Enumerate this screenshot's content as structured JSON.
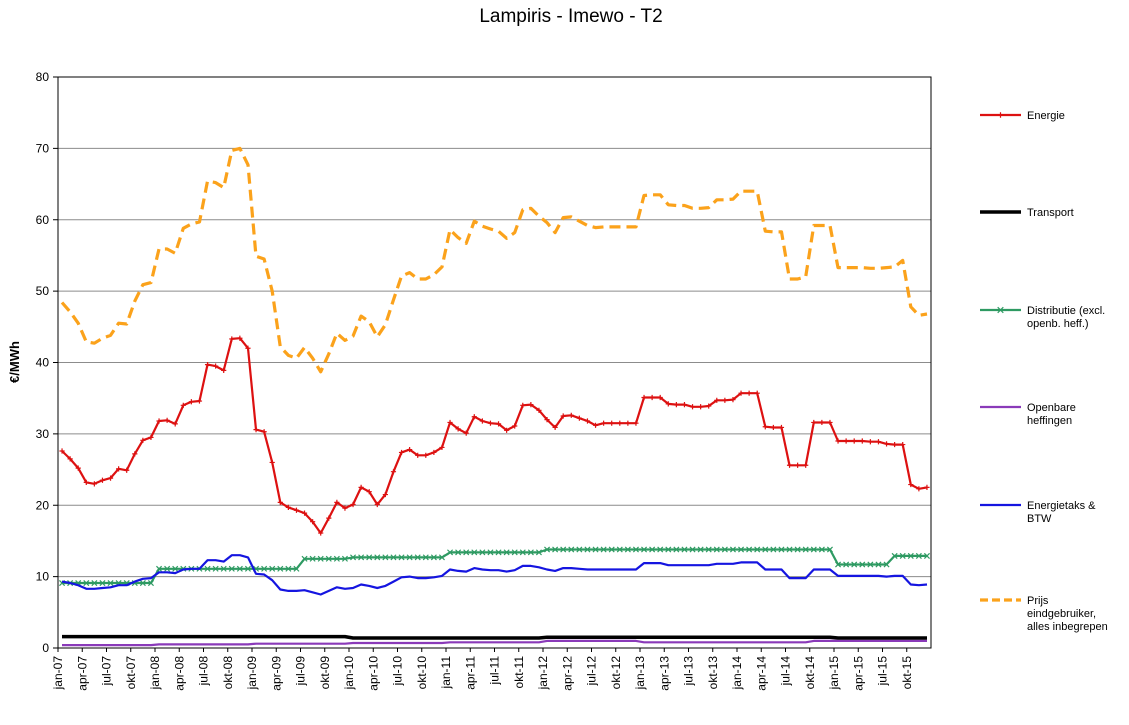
{
  "chart_data": {
    "type": "line",
    "title": "Lampiris - Imewo - T2",
    "xlabel": "",
    "ylabel": "€/MWh",
    "ylim": [
      0,
      80
    ],
    "yticks": [
      0,
      10,
      20,
      30,
      40,
      50,
      60,
      70,
      80
    ],
    "grid": true,
    "legend_position": "right",
    "x_start": "jan-07",
    "x_end": "dec-15",
    "x_tick_labels": [
      "jan-07",
      "apr-07",
      "jul-07",
      "okt-07",
      "jan-08",
      "apr-08",
      "jul-08",
      "okt-08",
      "jan-09",
      "apr-09",
      "jul-09",
      "okt-09",
      "jan-10",
      "apr-10",
      "jul-10",
      "okt-10",
      "jan-11",
      "apr-11",
      "jul-11",
      "okt-11",
      "jan-12",
      "apr-12",
      "jul-12",
      "okt-12",
      "jan-13",
      "apr-13",
      "jul-13",
      "okt-13",
      "jan-14",
      "apr-14",
      "jul-14",
      "okt-14",
      "jan-15",
      "apr-15",
      "jul-15",
      "okt-15"
    ],
    "series": [
      {
        "name": "Energie",
        "color": "#dd1111",
        "width": 2.2,
        "marker": "plus",
        "values": [
          27.6,
          26.5,
          25.2,
          23.2,
          23.0,
          23.5,
          23.8,
          25.1,
          24.9,
          27.2,
          29.1,
          29.5,
          31.8,
          31.9,
          31.4,
          34.0,
          34.5,
          34.6,
          39.7,
          39.5,
          38.9,
          43.3,
          43.4,
          42.0,
          30.6,
          30.3,
          26.0,
          20.4,
          19.7,
          19.3,
          18.9,
          17.7,
          16.1,
          18.2,
          20.4,
          19.6,
          20.1,
          22.5,
          21.9,
          20.1,
          21.5,
          24.7,
          27.4,
          27.8,
          27.0,
          27.0,
          27.4,
          28.1,
          31.6,
          30.7,
          30.1,
          32.4,
          31.8,
          31.5,
          31.4,
          30.5,
          31.1,
          34.0,
          34.1,
          33.3,
          32.0,
          30.9,
          32.5,
          32.6,
          32.2,
          31.8,
          31.2,
          31.5,
          31.5,
          31.5,
          31.5,
          31.5,
          35.1,
          35.1,
          35.1,
          34.2,
          34.1,
          34.1,
          33.8,
          33.8,
          33.9,
          34.7,
          34.7,
          34.8,
          35.7,
          35.7,
          35.7,
          31.0,
          30.9,
          30.9,
          25.6,
          25.6,
          25.6,
          31.6,
          31.6,
          31.6,
          29.0,
          29.0,
          29.0,
          29.0,
          28.9,
          28.9,
          28.6,
          28.5,
          28.5,
          22.9,
          22.3,
          22.5
        ]
      },
      {
        "name": "Transport",
        "color": "#000000",
        "width": 3.5,
        "marker": "none",
        "values": [
          1.6,
          1.6,
          1.6,
          1.6,
          1.6,
          1.6,
          1.6,
          1.6,
          1.6,
          1.6,
          1.6,
          1.6,
          1.6,
          1.6,
          1.6,
          1.6,
          1.6,
          1.6,
          1.6,
          1.6,
          1.6,
          1.6,
          1.6,
          1.6,
          1.6,
          1.6,
          1.6,
          1.6,
          1.6,
          1.6,
          1.6,
          1.6,
          1.6,
          1.6,
          1.6,
          1.6,
          1.4,
          1.4,
          1.4,
          1.4,
          1.4,
          1.4,
          1.4,
          1.4,
          1.4,
          1.4,
          1.4,
          1.4,
          1.4,
          1.4,
          1.4,
          1.4,
          1.4,
          1.4,
          1.4,
          1.4,
          1.4,
          1.4,
          1.4,
          1.4,
          1.5,
          1.5,
          1.5,
          1.5,
          1.5,
          1.5,
          1.5,
          1.5,
          1.5,
          1.5,
          1.5,
          1.5,
          1.5,
          1.5,
          1.5,
          1.5,
          1.5,
          1.5,
          1.5,
          1.5,
          1.5,
          1.5,
          1.5,
          1.5,
          1.5,
          1.5,
          1.5,
          1.5,
          1.5,
          1.5,
          1.5,
          1.5,
          1.5,
          1.5,
          1.5,
          1.5,
          1.4,
          1.4,
          1.4,
          1.4,
          1.4,
          1.4,
          1.4,
          1.4,
          1.4,
          1.4,
          1.4,
          1.4
        ]
      },
      {
        "name": "Distributie (excl. openb. heff.)",
        "color": "#2e9a62",
        "width": 2.2,
        "marker": "x",
        "values": [
          9.1,
          9.1,
          9.1,
          9.1,
          9.1,
          9.1,
          9.1,
          9.1,
          9.1,
          9.1,
          9.1,
          9.1,
          11.1,
          11.1,
          11.1,
          11.1,
          11.1,
          11.1,
          11.1,
          11.1,
          11.1,
          11.1,
          11.1,
          11.1,
          11.1,
          11.1,
          11.1,
          11.1,
          11.1,
          11.1,
          12.5,
          12.5,
          12.5,
          12.5,
          12.5,
          12.5,
          12.7,
          12.7,
          12.7,
          12.7,
          12.7,
          12.7,
          12.7,
          12.7,
          12.7,
          12.7,
          12.7,
          12.7,
          13.4,
          13.4,
          13.4,
          13.4,
          13.4,
          13.4,
          13.4,
          13.4,
          13.4,
          13.4,
          13.4,
          13.4,
          13.8,
          13.8,
          13.8,
          13.8,
          13.8,
          13.8,
          13.8,
          13.8,
          13.8,
          13.8,
          13.8,
          13.8,
          13.8,
          13.8,
          13.8,
          13.8,
          13.8,
          13.8,
          13.8,
          13.8,
          13.8,
          13.8,
          13.8,
          13.8,
          13.8,
          13.8,
          13.8,
          13.8,
          13.8,
          13.8,
          13.8,
          13.8,
          13.8,
          13.8,
          13.8,
          13.8,
          11.7,
          11.7,
          11.7,
          11.7,
          11.7,
          11.7,
          11.7,
          12.9,
          12.9,
          12.9,
          12.9,
          12.9
        ]
      },
      {
        "name": "Openbare heffingen",
        "color": "#8a3ab9",
        "width": 2.2,
        "marker": "none",
        "values": [
          0.4,
          0.4,
          0.4,
          0.4,
          0.4,
          0.4,
          0.4,
          0.4,
          0.4,
          0.4,
          0.4,
          0.4,
          0.5,
          0.5,
          0.5,
          0.5,
          0.5,
          0.5,
          0.5,
          0.5,
          0.5,
          0.5,
          0.5,
          0.5,
          0.6,
          0.6,
          0.6,
          0.6,
          0.6,
          0.6,
          0.6,
          0.6,
          0.6,
          0.6,
          0.6,
          0.6,
          0.7,
          0.7,
          0.7,
          0.7,
          0.7,
          0.7,
          0.7,
          0.7,
          0.7,
          0.7,
          0.7,
          0.7,
          0.8,
          0.8,
          0.8,
          0.8,
          0.8,
          0.8,
          0.8,
          0.8,
          0.8,
          0.8,
          0.8,
          0.8,
          1.0,
          1.0,
          1.0,
          1.0,
          1.0,
          1.0,
          1.0,
          1.0,
          1.0,
          1.0,
          1.0,
          1.0,
          0.8,
          0.8,
          0.8,
          0.8,
          0.8,
          0.8,
          0.8,
          0.8,
          0.8,
          0.8,
          0.8,
          0.8,
          0.8,
          0.8,
          0.8,
          0.8,
          0.8,
          0.8,
          0.8,
          0.8,
          0.8,
          1.0,
          1.0,
          1.0,
          1.0,
          1.0,
          1.0,
          1.0,
          1.0,
          1.0,
          1.0,
          1.0,
          1.0,
          1.0,
          1.0,
          1.0
        ]
      },
      {
        "name": "Energietaks & BTW",
        "color": "#1515e0",
        "width": 2.2,
        "marker": "none",
        "values": [
          9.3,
          9.1,
          8.8,
          8.3,
          8.3,
          8.4,
          8.5,
          8.8,
          8.8,
          9.3,
          9.7,
          9.8,
          10.6,
          10.6,
          10.5,
          11.0,
          11.1,
          11.1,
          12.3,
          12.3,
          12.1,
          13.0,
          13.0,
          12.7,
          10.4,
          10.3,
          9.5,
          8.2,
          8.0,
          8.0,
          8.1,
          7.8,
          7.5,
          8.0,
          8.5,
          8.3,
          8.4,
          8.9,
          8.7,
          8.4,
          8.7,
          9.3,
          9.9,
          10.0,
          9.8,
          9.8,
          9.9,
          10.1,
          11.0,
          10.8,
          10.7,
          11.2,
          11.0,
          10.9,
          10.9,
          10.7,
          10.9,
          11.5,
          11.5,
          11.3,
          11.0,
          10.8,
          11.2,
          11.2,
          11.1,
          11.0,
          11.0,
          11.0,
          11.0,
          11.0,
          11.0,
          11.0,
          11.9,
          11.9,
          11.9,
          11.6,
          11.6,
          11.6,
          11.6,
          11.6,
          11.6,
          11.8,
          11.8,
          11.8,
          12.0,
          12.0,
          12.0,
          11.0,
          11.0,
          11.0,
          9.8,
          9.8,
          9.8,
          11.0,
          11.0,
          11.0,
          10.1,
          10.1,
          10.1,
          10.1,
          10.1,
          10.1,
          10.0,
          10.1,
          10.1,
          8.9,
          8.8,
          8.9
        ]
      },
      {
        "name": "Prijs eindgebruiker, alles inbegrepen",
        "color": "#fba21b",
        "width": 3.2,
        "dash": "11,6",
        "marker": "none",
        "values": [
          48.4,
          47.1,
          45.5,
          42.9,
          42.7,
          43.4,
          43.8,
          45.5,
          45.4,
          48.6,
          50.9,
          51.2,
          55.9,
          55.9,
          55.3,
          58.8,
          59.4,
          59.7,
          65.4,
          65.2,
          64.5,
          69.7,
          70.0,
          67.7,
          54.9,
          54.5,
          50.0,
          42.2,
          41.0,
          40.6,
          42.1,
          40.6,
          38.7,
          41.2,
          44.1,
          43.1,
          43.7,
          46.5,
          45.7,
          43.6,
          45.3,
          48.8,
          52.1,
          52.6,
          51.7,
          51.7,
          52.3,
          53.4,
          58.6,
          57.5,
          56.7,
          59.8,
          59.1,
          58.7,
          58.4,
          57.4,
          58.2,
          61.4,
          61.6,
          60.5,
          59.6,
          58.2,
          60.3,
          60.4,
          59.8,
          59.2,
          58.9,
          59.0,
          59.0,
          59.0,
          59.0,
          59.0,
          63.4,
          63.5,
          63.5,
          62.1,
          62.0,
          62.0,
          61.6,
          61.6,
          61.7,
          62.8,
          62.8,
          62.9,
          64.0,
          64.0,
          64.0,
          58.4,
          58.3,
          58.3,
          51.7,
          51.7,
          52.0,
          59.2,
          59.2,
          59.2,
          53.3,
          53.3,
          53.3,
          53.3,
          53.2,
          53.2,
          53.3,
          53.4,
          54.3,
          47.8,
          46.6,
          46.8
        ]
      }
    ]
  }
}
